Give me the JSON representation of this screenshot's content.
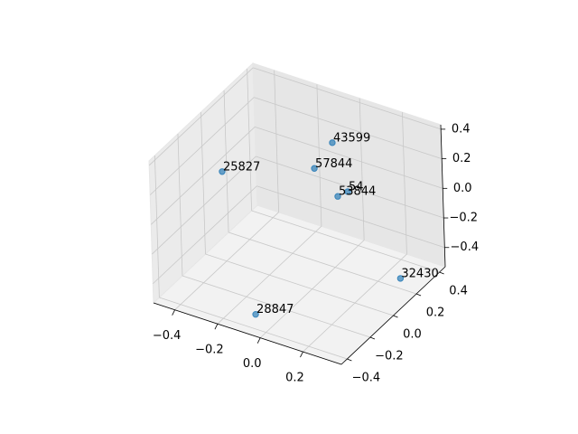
{
  "chart_data": {
    "type": "scatter3d",
    "x": [
      -0.069,
      0.318,
      -0.412,
      -0.06,
      -0.06,
      0.028,
      0.028
    ],
    "y": [
      -0.36,
      0.18,
      0.006,
      0.315,
      0.157,
      0.275,
      0.19
    ],
    "z": [
      -0.47,
      -0.44,
      0.065,
      0.2,
      0.142,
      -0.06,
      -0.03
    ],
    "labels": [
      "28847",
      "32430",
      "25827",
      "43599",
      "57844",
      "54",
      "53844"
    ],
    "color": "#1f77b4",
    "xlim": [
      -0.5,
      0.38
    ],
    "ylim": [
      -0.45,
      0.45
    ],
    "zlim": [
      -0.53,
      0.43
    ],
    "xticks": [
      {
        "value": -0.4,
        "label": "−0.4"
      },
      {
        "value": -0.2,
        "label": "−0.2"
      },
      {
        "value": 0,
        "label": "0.0"
      },
      {
        "value": 0.2,
        "label": "0.2"
      }
    ],
    "yticks": [
      {
        "value": -0.4,
        "label": "−0.4"
      },
      {
        "value": -0.2,
        "label": "−0.2"
      },
      {
        "value": 0,
        "label": "0.0"
      },
      {
        "value": 0.2,
        "label": "0.2"
      },
      {
        "value": 0.4,
        "label": "0.4"
      }
    ],
    "zticks": [
      {
        "value": -0.4,
        "label": "−0.4"
      },
      {
        "value": -0.2,
        "label": "−0.2"
      },
      {
        "value": 0,
        "label": "0.0"
      },
      {
        "value": 0.2,
        "label": "0.2"
      },
      {
        "value": 0.4,
        "label": "0.4"
      }
    ],
    "grid": true
  }
}
